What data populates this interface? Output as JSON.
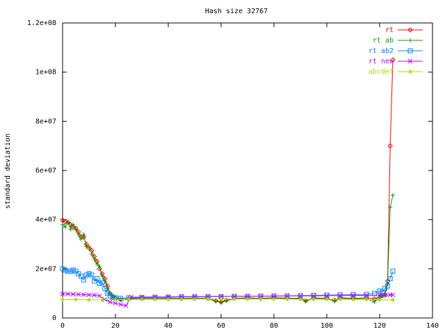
{
  "chart_data": {
    "type": "line",
    "title": "Hash size 32767",
    "xlabel": "",
    "ylabel": "standard deviation",
    "xlim": [
      0,
      140
    ],
    "ylim": [
      0,
      120000000
    ],
    "x_ticks": [
      0,
      20,
      40,
      60,
      80,
      100,
      120,
      140
    ],
    "x_tick_labels": [
      "0",
      "20",
      "40",
      "60",
      "80",
      "100",
      "120",
      "140"
    ],
    "y_ticks": [
      0,
      20000000,
      40000000,
      60000000,
      80000000,
      100000000,
      120000000
    ],
    "y_tick_labels": [
      "0",
      "2e+07",
      "4e+07",
      "6e+07",
      "8e+07",
      "1e+08",
      "1.2e+08"
    ],
    "grid": false,
    "legend_position": "top-right",
    "series": [
      {
        "name": "rt",
        "color": "#ff0000",
        "marker": "diamond",
        "x": [
          0,
          1,
          2,
          3,
          4,
          5,
          6,
          7,
          8,
          9,
          10,
          11,
          12,
          13,
          14,
          15,
          16,
          17,
          18,
          19,
          20,
          22,
          25,
          30,
          35,
          40,
          45,
          50,
          55,
          58,
          60,
          62,
          65,
          70,
          75,
          80,
          85,
          90,
          92,
          95,
          100,
          103,
          105,
          110,
          115,
          118,
          120,
          121,
          122,
          123,
          124,
          125
        ],
        "y": [
          39800000,
          39000000,
          39000000,
          38000000,
          37000000,
          36500000,
          35000000,
          33000000,
          33000000,
          30000000,
          28500000,
          27500000,
          25000000,
          23000000,
          20000000,
          18000000,
          16000000,
          13000000,
          10000000,
          8500000,
          8000000,
          7500000,
          7800000,
          8000000,
          8000000,
          8100000,
          8000000,
          8100000,
          8000000,
          7000000,
          6500000,
          7200000,
          8000000,
          8200000,
          8000000,
          8300000,
          8100000,
          8000000,
          7000000,
          8200000,
          8000000,
          7200000,
          8300000,
          8000000,
          8200000,
          7800000,
          8500000,
          9000000,
          9500000,
          15000000,
          70000000,
          105000000
        ]
      },
      {
        "name": "rt ab",
        "color": "#00a000",
        "marker": "plus",
        "x": [
          0,
          1,
          2,
          3,
          4,
          5,
          6,
          7,
          8,
          9,
          10,
          11,
          12,
          13,
          14,
          15,
          16,
          17,
          18,
          19,
          20,
          22,
          25,
          30,
          35,
          40,
          45,
          50,
          55,
          58,
          60,
          62,
          65,
          70,
          75,
          80,
          85,
          90,
          92,
          95,
          100,
          103,
          105,
          110,
          115,
          118,
          120,
          121,
          122,
          123,
          124,
          125
        ],
        "y": [
          38000000,
          37000000,
          39000000,
          36000000,
          38000000,
          36000000,
          34000000,
          32000000,
          34000000,
          29000000,
          29000000,
          26000000,
          24000000,
          22000000,
          21000000,
          17000000,
          15000000,
          12000000,
          10000000,
          9000000,
          8000000,
          7200000,
          7700000,
          7900000,
          7800000,
          8000000,
          7900000,
          8000000,
          7800000,
          6800000,
          6200000,
          7000000,
          7800000,
          8000000,
          7800000,
          8100000,
          7900000,
          7800000,
          6800000,
          8000000,
          7800000,
          6800000,
          8000000,
          7800000,
          8000000,
          6500000,
          8300000,
          9000000,
          9000000,
          14000000,
          45000000,
          50000000
        ]
      },
      {
        "name": "rt ab2",
        "color": "#0080ff",
        "marker": "square",
        "x": [
          0,
          1,
          2,
          3,
          4,
          5,
          6,
          7,
          8,
          9,
          10,
          11,
          12,
          13,
          14,
          15,
          16,
          17,
          18,
          19,
          20,
          22,
          25,
          30,
          35,
          40,
          45,
          50,
          55,
          60,
          65,
          70,
          75,
          80,
          85,
          90,
          95,
          100,
          105,
          110,
          115,
          118,
          120,
          121,
          122,
          123,
          124,
          125
        ],
        "y": [
          20000000,
          19500000,
          19000000,
          19000000,
          19500000,
          19000000,
          18000000,
          17000000,
          15500000,
          17500000,
          18000000,
          17500000,
          15000000,
          16000000,
          14000000,
          14500000,
          12000000,
          10000000,
          9000000,
          8500000,
          8200000,
          8000000,
          8200000,
          8300000,
          8400000,
          8500000,
          8600000,
          8600000,
          8700000,
          8700000,
          8800000,
          8800000,
          8900000,
          9000000,
          9000000,
          9100000,
          9200000,
          9300000,
          9400000,
          9500000,
          9600000,
          10000000,
          11000000,
          10500000,
          12000000,
          13000000,
          16000000,
          19000000
        ]
      },
      {
        "name": "rt new",
        "color": "#c000ff",
        "marker": "cross",
        "x": [
          0,
          2,
          4,
          6,
          8,
          10,
          12,
          14,
          16,
          18,
          20,
          22,
          24,
          26,
          30,
          35,
          40,
          45,
          50,
          55,
          60,
          65,
          70,
          75,
          80,
          85,
          90,
          95,
          100,
          105,
          110,
          115,
          120,
          122,
          124,
          125
        ],
        "y": [
          9800000,
          9800000,
          9700000,
          9600000,
          9500000,
          9400000,
          9300000,
          9000000,
          7500000,
          6500000,
          6000000,
          5500000,
          5000000,
          8500000,
          8500000,
          8600000,
          8600000,
          8700000,
          8700000,
          8800000,
          8800000,
          8800000,
          8900000,
          8900000,
          8900000,
          9000000,
          9000000,
          9000000,
          9100000,
          9100000,
          9200000,
          9200000,
          9300000,
          9300000,
          9400000,
          9400000
        ]
      },
      {
        "name": "abcdef",
        "color": "#a0e000",
        "marker": "star",
        "x": [
          0,
          5,
          10,
          15,
          20,
          25,
          30,
          35,
          40,
          45,
          50,
          55,
          60,
          65,
          70,
          75,
          80,
          85,
          90,
          95,
          100,
          105,
          110,
          115,
          120,
          125
        ],
        "y": [
          7500000,
          7500000,
          7400000,
          7400000,
          7500000,
          7500000,
          7600000,
          7600000,
          7600000,
          7600000,
          7700000,
          7700000,
          7700000,
          7700000,
          7700000,
          7700000,
          7700000,
          7700000,
          7600000,
          7600000,
          7600000,
          7600000,
          7500000,
          7500000,
          7400000,
          7400000
        ]
      }
    ]
  }
}
